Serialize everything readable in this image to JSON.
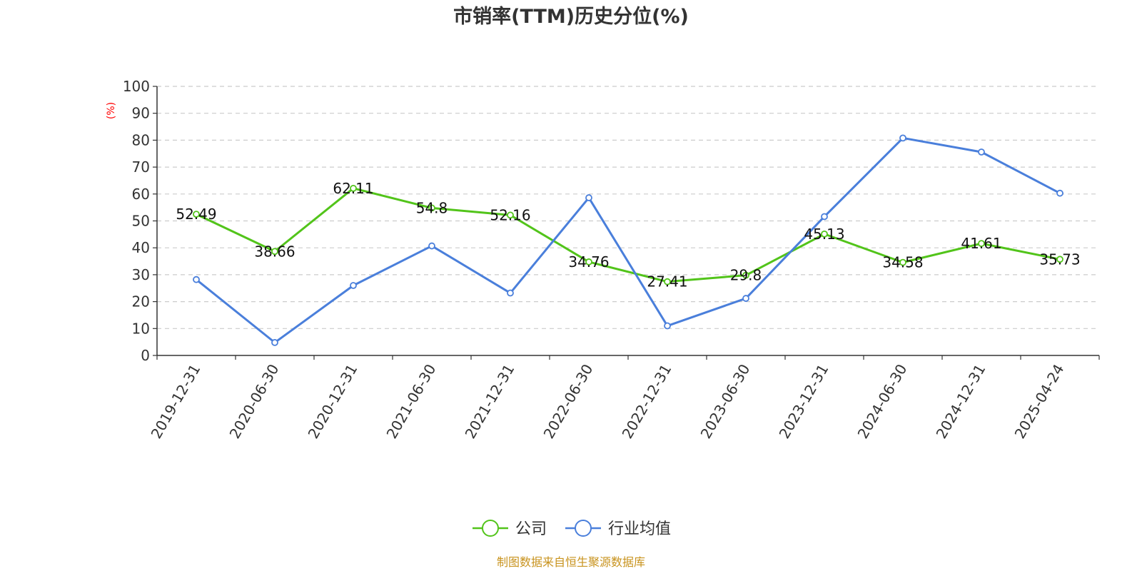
{
  "chart_data": {
    "type": "line",
    "title": "市销率(TTM)历史分位(%)",
    "ylabel": "(%)",
    "xlabel": "",
    "ylim": [
      0,
      100
    ],
    "yticks": [
      0,
      10,
      20,
      30,
      40,
      50,
      60,
      70,
      80,
      90,
      100
    ],
    "categories": [
      "2019-12-31",
      "2020-06-30",
      "2020-12-31",
      "2021-06-30",
      "2021-12-31",
      "2022-06-30",
      "2022-12-31",
      "2023-06-30",
      "2023-12-31",
      "2024-06-30",
      "2024-12-31",
      "2025-04-24"
    ],
    "series": [
      {
        "name": "公司",
        "color": "#52c41a",
        "show_labels": true,
        "values": [
          52.49,
          38.66,
          62.11,
          54.8,
          52.16,
          34.76,
          27.41,
          29.8,
          45.13,
          34.58,
          41.61,
          35.73
        ]
      },
      {
        "name": "行业均值",
        "color": "#4a7fdb",
        "show_labels": false,
        "values": [
          28.2,
          4.8,
          26.0,
          40.7,
          23.2,
          58.6,
          11.0,
          21.2,
          51.6,
          80.8,
          75.6,
          60.3
        ]
      }
    ],
    "grid": true,
    "legend_position": "bottom"
  },
  "footer": {
    "source": "制图数据来自恒生聚源数据库"
  }
}
